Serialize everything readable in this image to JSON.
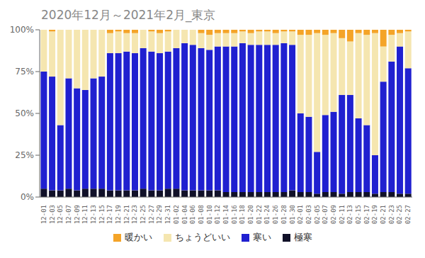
{
  "chart_data": {
    "type": "bar",
    "title": "2020年12月～2021年2月_東京",
    "stacked": true,
    "grid": false,
    "legend": "bottom",
    "categories": [
      "12-01",
      "12-03",
      "12-05",
      "12-07",
      "12-09",
      "12-11",
      "12-13",
      "12-15",
      "12-17",
      "12-19",
      "12-21",
      "12-23",
      "12-25",
      "12-27",
      "12-29",
      "12-31",
      "01-02",
      "01-04",
      "01-06",
      "01-08",
      "01-10",
      "01-12",
      "01-14",
      "01-16",
      "01-18",
      "01-20",
      "01-22",
      "01-24",
      "01-26",
      "01-28",
      "01-30",
      "02-01",
      "02-03",
      "02-05",
      "02-07",
      "02-09",
      "02-11",
      "02-13",
      "02-15",
      "02-17",
      "02-19",
      "02-21",
      "02-23",
      "02-25",
      "02-27"
    ],
    "series": [
      {
        "name": "暖かい",
        "color": "#F4A428",
        "values": [
          0,
          1,
          0,
          0,
          0,
          0,
          0,
          0,
          2,
          1,
          2,
          2,
          0,
          1,
          2,
          1,
          0,
          0,
          0,
          2,
          3,
          2,
          2,
          2,
          1,
          2,
          1,
          1,
          2,
          1,
          1,
          3,
          3,
          2,
          3,
          2,
          5,
          7,
          2,
          3,
          2,
          10,
          3,
          2,
          1
        ]
      },
      {
        "name": "ちょうどいい",
        "color": "#F5E6B0",
        "values": [
          25,
          27,
          57,
          29,
          35,
          36,
          29,
          28,
          12,
          13,
          11,
          12,
          11,
          12,
          12,
          12,
          11,
          8,
          9,
          9,
          9,
          8,
          8,
          8,
          7,
          7,
          8,
          8,
          7,
          7,
          8,
          47,
          49,
          71,
          48,
          47,
          34,
          32,
          51,
          54,
          73,
          21,
          16,
          8,
          22
        ]
      },
      {
        "name": "寒い",
        "color": "#2020D0",
        "values": [
          70,
          68,
          39,
          66,
          61,
          59,
          66,
          67,
          82,
          82,
          83,
          82,
          84,
          83,
          82,
          82,
          84,
          88,
          87,
          85,
          84,
          86,
          87,
          87,
          89,
          88,
          88,
          88,
          88,
          89,
          87,
          47,
          45,
          25,
          46,
          48,
          59,
          58,
          44,
          40,
          23,
          66,
          78,
          88,
          75
        ]
      },
      {
        "name": "極寒",
        "color": "#101028",
        "values": [
          5,
          4,
          4,
          5,
          4,
          5,
          5,
          5,
          4,
          4,
          4,
          4,
          5,
          4,
          4,
          5,
          5,
          4,
          4,
          4,
          4,
          4,
          3,
          3,
          3,
          3,
          3,
          3,
          3,
          3,
          4,
          3,
          3,
          2,
          3,
          3,
          2,
          3,
          3,
          3,
          2,
          3,
          3,
          2,
          2
        ]
      }
    ],
    "ylim": [
      0,
      100
    ],
    "yticks": [
      {
        "value": 0,
        "label": "0%"
      },
      {
        "value": 25,
        "label": "25%"
      },
      {
        "value": 50,
        "label": "50%"
      },
      {
        "value": 75,
        "label": "75%"
      },
      {
        "value": 100,
        "label": "100%"
      }
    ]
  }
}
